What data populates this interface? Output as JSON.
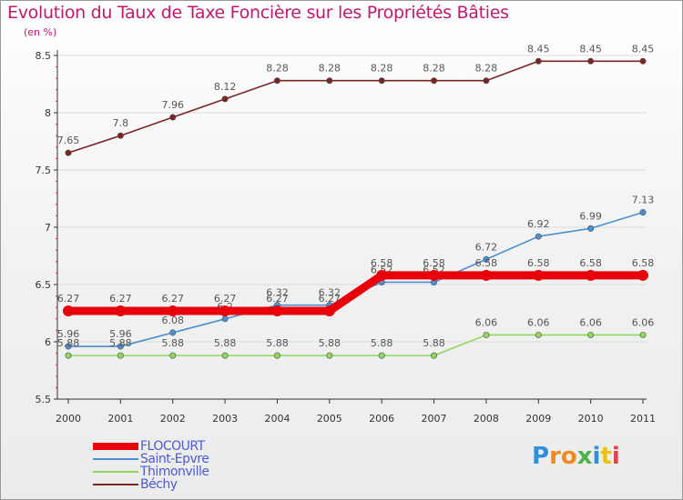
{
  "title": "Evolution du Taux de Taxe Foncière sur les Propriétés Bâties",
  "unit": "(en %)",
  "chart_data": {
    "type": "line",
    "title": "Evolution du Taux de Taxe Foncière sur les Propriétés Bâties",
    "ylabel": "(en %)",
    "xlabel": "",
    "x": [
      "2000",
      "2001",
      "2002",
      "2003",
      "2004",
      "2005",
      "2006",
      "2007",
      "2008",
      "2009",
      "2010",
      "2011"
    ],
    "ylim": [
      5.5,
      8.5
    ],
    "yticks": [
      5.5,
      6,
      6.5,
      7,
      7.5,
      8,
      8.5
    ],
    "ytick_labels": [
      "5.5",
      "6",
      "6.5",
      "7",
      "7.5",
      "8",
      "8.5"
    ],
    "legend": "bottom-left",
    "series": [
      {
        "name": "Béchy",
        "color": "#7a2424",
        "values": [
          7.65,
          7.8,
          7.96,
          8.12,
          8.28,
          8.28,
          8.28,
          8.28,
          8.28,
          8.45,
          8.45,
          8.45
        ],
        "labels": [
          "7.65",
          "7.8",
          "7.96",
          "8.12",
          "8.28",
          "8.28",
          "8.28",
          "8.28",
          "8.28",
          "8.45",
          "8.45",
          "8.45"
        ]
      },
      {
        "name": "Saint-Epvre",
        "color": "#4a8fcf",
        "values": [
          5.96,
          5.96,
          6.08,
          6.2,
          6.32,
          6.32,
          6.52,
          6.52,
          6.72,
          6.92,
          6.99,
          7.13
        ],
        "labels": [
          "5.96",
          "5.96",
          "6.08",
          "6.2",
          "6.32",
          "6.32",
          "6.52",
          "6.52",
          "6.72",
          "6.92",
          "6.99",
          "7.13"
        ]
      },
      {
        "name": "Thimonville",
        "color": "#8fd65a",
        "values": [
          5.88,
          5.88,
          5.88,
          5.88,
          5.88,
          5.88,
          5.88,
          5.88,
          6.06,
          6.06,
          6.06,
          6.06
        ],
        "labels": [
          "5.88",
          "5.88",
          "5.88",
          "5.88",
          "5.88",
          "5.88",
          "5.88",
          "5.88",
          "6.06",
          "6.06",
          "6.06",
          "6.06"
        ]
      },
      {
        "name": "FLOCOURT",
        "color": "#e8000b",
        "values": [
          6.27,
          6.27,
          6.27,
          6.27,
          6.27,
          6.27,
          6.58,
          6.58,
          6.58,
          6.58,
          6.58,
          6.58
        ],
        "labels": [
          "6.27",
          "6.27",
          "6.27",
          "6.27",
          "6.27",
          "6.27",
          "6.58",
          "6.58",
          "6.58",
          "6.58",
          "6.58",
          "6.58"
        ]
      }
    ]
  },
  "legend_items": [
    {
      "label": "FLOCOURT",
      "color": "#e8000b"
    },
    {
      "label": "Saint-Epvre",
      "color": "#4a8fcf"
    },
    {
      "label": "Thimonville",
      "color": "#8fd65a"
    },
    {
      "label": "Béchy",
      "color": "#7a2424"
    }
  ],
  "logo": {
    "letters": [
      "P",
      "r",
      "o",
      "x",
      "i",
      "t",
      "i"
    ],
    "colors": [
      "#2f8fd8",
      "#f08a1c",
      "#f08a1c",
      "#4bb34b",
      "#2f8fd8",
      "#e8c21a",
      "#e0434a"
    ]
  }
}
